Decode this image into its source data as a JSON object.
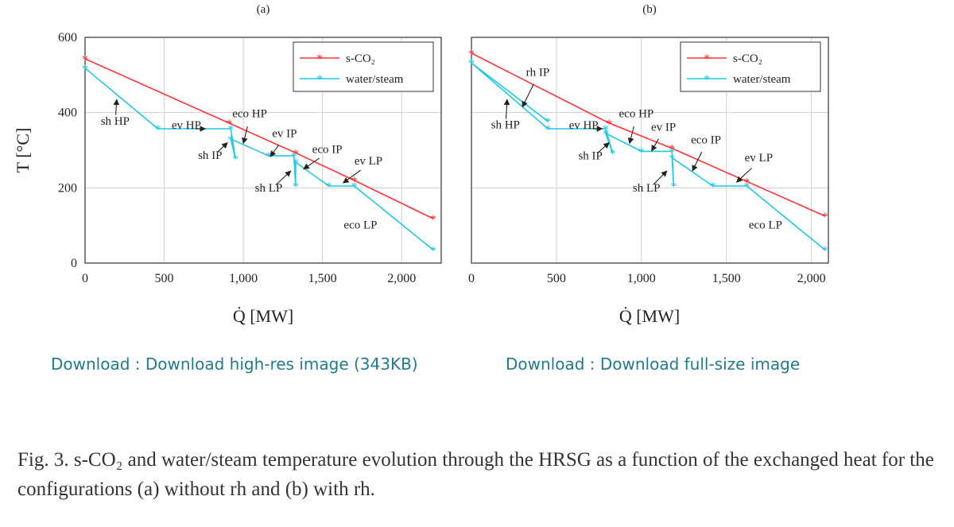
{
  "figure": {
    "caption": "Fig. 3. s-CO₂ and water/steam temperature evolution through the HRSG as a function of the exchanged heat for the configurations (a) without rh and (b) with rh."
  },
  "downloads": {
    "a_label": "Download : Download high-res image (343KB)",
    "b_label": "Download : Download full-size image"
  },
  "colors": {
    "sco2": "#ff3333",
    "water": "#1ec8e6",
    "axis": "#333333",
    "grid": "#d0d0d0"
  },
  "chart_data": [
    {
      "type": "line",
      "title": "(a)",
      "xlabel": "Q̇ [MW]",
      "ylabel": "T [°C]",
      "xlim": [
        0,
        2250
      ],
      "ylim": [
        0,
        600
      ],
      "xticks": [
        0,
        500,
        1000,
        1500,
        2000
      ],
      "xtick_labels": [
        "0",
        "500",
        "1,000",
        "1,500",
        "2,000"
      ],
      "yticks": [
        0,
        200,
        400,
        600
      ],
      "ytick_labels": [
        "0",
        "200",
        "400",
        "600"
      ],
      "grid": true,
      "legend": "top-right",
      "series": [
        {
          "name": "s-CO₂",
          "color": "#ff3333",
          "points": [
            [
              0,
              543
            ],
            [
              910,
              372
            ],
            [
              1330,
              293
            ],
            [
              1700,
              220
            ],
            [
              2200,
              118
            ]
          ]
        },
        {
          "name": "water/steam",
          "color": "#1ec8e6",
          "points": [
            [
              0,
              518
            ],
            [
              460,
              357
            ],
            [
              920,
              357
            ],
            [
              950,
              278
            ],
            [
              920,
              330
            ],
            [
              1160,
              285
            ],
            [
              1320,
              285
            ],
            [
              1330,
              205
            ],
            [
              1330,
              268
            ],
            [
              1540,
              205
            ],
            [
              1700,
              205
            ],
            [
              2200,
              35
            ]
          ]
        }
      ],
      "annotations": [
        {
          "text": "sh HP",
          "x": 190,
          "y": 368,
          "tx": 200,
          "ty": 435
        },
        {
          "text": "ev HP",
          "x": 640,
          "y": 357,
          "tx": 760,
          "ty": 357
        },
        {
          "text": "eco HP",
          "x": 1040,
          "y": 388,
          "tx": 1000,
          "ty": 318
        },
        {
          "text": "sh IP",
          "x": 790,
          "y": 277,
          "tx": 900,
          "ty": 320
        },
        {
          "text": "ev IP",
          "x": 1260,
          "y": 335,
          "tx": 1170,
          "ty": 283
        },
        {
          "text": "eco IP",
          "x": 1530,
          "y": 293,
          "tx": 1380,
          "ty": 250
        },
        {
          "text": "ev LP",
          "x": 1790,
          "y": 262,
          "tx": 1630,
          "ty": 213
        },
        {
          "text": "sh LP",
          "x": 1160,
          "y": 190,
          "tx": 1300,
          "ty": 245
        },
        {
          "text": "eco LP",
          "x": 1740,
          "y": 92,
          "tx": null,
          "ty": null
        }
      ]
    },
    {
      "type": "line",
      "title": "(b)",
      "xlabel": "Q̇ [MW]",
      "ylabel": "",
      "xlim": [
        0,
        2100
      ],
      "ylim": [
        0,
        600
      ],
      "xticks": [
        0,
        500,
        1000,
        1500,
        2000
      ],
      "xtick_labels": [
        "0",
        "500",
        "1,000",
        "1,500",
        "2,000"
      ],
      "yticks": [
        0,
        200,
        400,
        600
      ],
      "ytick_labels": [
        "",
        "",
        "",
        ""
      ],
      "grid": true,
      "legend": "top-right",
      "series": [
        {
          "name": "s-CO₂",
          "color": "#ff3333",
          "points": [
            [
              0,
              558
            ],
            [
              810,
              372
            ],
            [
              1180,
              305
            ],
            [
              1620,
              217
            ],
            [
              2080,
              125
            ]
          ]
        },
        {
          "name": "water/steam",
          "color": "#1ec8e6",
          "points": [
            [
              0,
              532
            ],
            [
              450,
              377
            ],
            [
              0,
              532
            ],
            [
              450,
              357
            ],
            [
              790,
              357
            ],
            [
              830,
              293
            ],
            [
              790,
              345
            ],
            [
              1000,
              297
            ],
            [
              1180,
              297
            ],
            [
              1190,
              205
            ],
            [
              1180,
              280
            ],
            [
              1420,
              205
            ],
            [
              1620,
              205
            ],
            [
              2080,
              35
            ]
          ]
        }
      ],
      "annotations": [
        {
          "text": "rh IP",
          "x": 390,
          "y": 498,
          "tx": 300,
          "ty": 415
        },
        {
          "text": "sh HP",
          "x": 200,
          "y": 358,
          "tx": 210,
          "ty": 435
        },
        {
          "text": "ev HP",
          "x": 660,
          "y": 357,
          "tx": 770,
          "ty": 357
        },
        {
          "text": "eco HP",
          "x": 970,
          "y": 388,
          "tx": 930,
          "ty": 318
        },
        {
          "text": "sh IP",
          "x": 700,
          "y": 276,
          "tx": 810,
          "ty": 320
        },
        {
          "text": "ev IP",
          "x": 1130,
          "y": 352,
          "tx": 1060,
          "ty": 298
        },
        {
          "text": "eco IP",
          "x": 1380,
          "y": 318,
          "tx": 1300,
          "ty": 245
        },
        {
          "text": "ev LP",
          "x": 1690,
          "y": 270,
          "tx": 1560,
          "ty": 215
        },
        {
          "text": "sh LP",
          "x": 1030,
          "y": 190,
          "tx": 1150,
          "ty": 245
        },
        {
          "text": "eco LP",
          "x": 1730,
          "y": 92,
          "tx": null,
          "ty": null
        }
      ]
    }
  ]
}
